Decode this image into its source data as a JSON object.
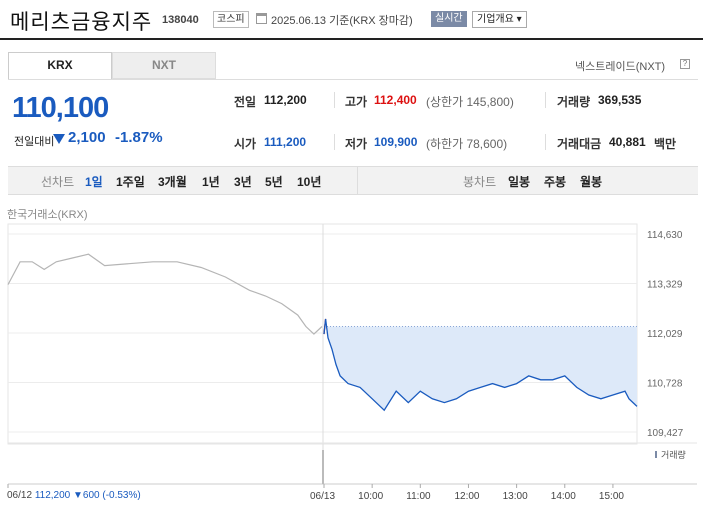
{
  "header": {
    "company": "메리츠금융지주",
    "code": "138040",
    "market": "코스피",
    "date": "2025.06.13 기준(KRX 장마감)",
    "realtime": "실시간",
    "company_overview": "기업개요 ▾"
  },
  "tabs": {
    "krx": "KRX",
    "nxt": "NXT",
    "nxt_link": "넥스트레이드(NXT)",
    "help": "?"
  },
  "quote": {
    "price": "110,100",
    "change_label": "전일대비",
    "change": "2,100",
    "change_pct": "-1.87%"
  },
  "stats": {
    "prev_label": "전일",
    "prev": "112,200",
    "high_label": "고가",
    "high": "112,400",
    "upper_limit": "(상한가 145,800)",
    "volume_label": "거래량",
    "volume": "369,535",
    "open_label": "시가",
    "open": "111,200",
    "low_label": "저가",
    "low": "109,900",
    "lower_limit": "(하한가 78,600)",
    "value_label": "거래대금",
    "value": "40,881",
    "value_unit": "백만"
  },
  "periods": {
    "line_label": "선차트",
    "items": [
      "1일",
      "1주일",
      "3개월",
      "1년",
      "3년",
      "5년",
      "10년"
    ],
    "candle_label": "봉차트",
    "candle_items": [
      "일봉",
      "주봉",
      "월봉"
    ]
  },
  "chart_source": "한국거래소(KRX)",
  "footer": {
    "date": "06/12",
    "price": "112,200",
    "change": "▼600",
    "pct": "(-0.53%)"
  },
  "colors": {
    "accent": "#1a5bbf",
    "up": "#d11111",
    "prev_line": "#b5b5b5",
    "fill": "#dde9f9"
  },
  "chart_data": {
    "type": "line",
    "y_ticks": [
      114630,
      113329,
      112029,
      110728,
      109427
    ],
    "ylim": [
      109427,
      114630
    ],
    "x_ticks": [
      "06/12",
      "06/13",
      "10:00",
      "11:00",
      "12:00",
      "13:00",
      "14:00",
      "15:00"
    ],
    "volume_label": "거래량",
    "reference_price": 112200,
    "series": [
      {
        "day": "06/12",
        "x": [
          "09:00",
          "09:15",
          "09:30",
          "09:45",
          "10:00",
          "10:20",
          "10:40",
          "11:00",
          "11:30",
          "12:00",
          "12:30",
          "13:00",
          "13:30",
          "14:00",
          "14:20",
          "14:40",
          "15:00",
          "15:10",
          "15:20",
          "15:30"
        ],
        "values": [
          113300,
          113900,
          113900,
          113700,
          113900,
          114000,
          114100,
          113800,
          113850,
          113900,
          113900,
          113750,
          113500,
          113150,
          113000,
          112800,
          112500,
          112200,
          112000,
          112200
        ]
      },
      {
        "day": "06/13",
        "x": [
          "09:00",
          "09:02",
          "09:05",
          "09:10",
          "09:15",
          "09:20",
          "09:30",
          "09:45",
          "10:00",
          "10:15",
          "10:30",
          "10:45",
          "11:00",
          "11:15",
          "11:30",
          "11:45",
          "12:00",
          "12:15",
          "12:30",
          "12:45",
          "13:00",
          "13:15",
          "13:30",
          "13:45",
          "14:00",
          "14:15",
          "14:30",
          "14:45",
          "15:00",
          "15:15",
          "15:20",
          "15:30"
        ],
        "values": [
          112000,
          112400,
          111900,
          111600,
          111200,
          110900,
          110700,
          110600,
          110300,
          110000,
          110500,
          110200,
          110500,
          110300,
          110200,
          110300,
          110500,
          110600,
          110700,
          110600,
          110700,
          110900,
          110800,
          110800,
          110900,
          110600,
          110400,
          110300,
          110400,
          110500,
          110300,
          110100
        ]
      }
    ]
  }
}
